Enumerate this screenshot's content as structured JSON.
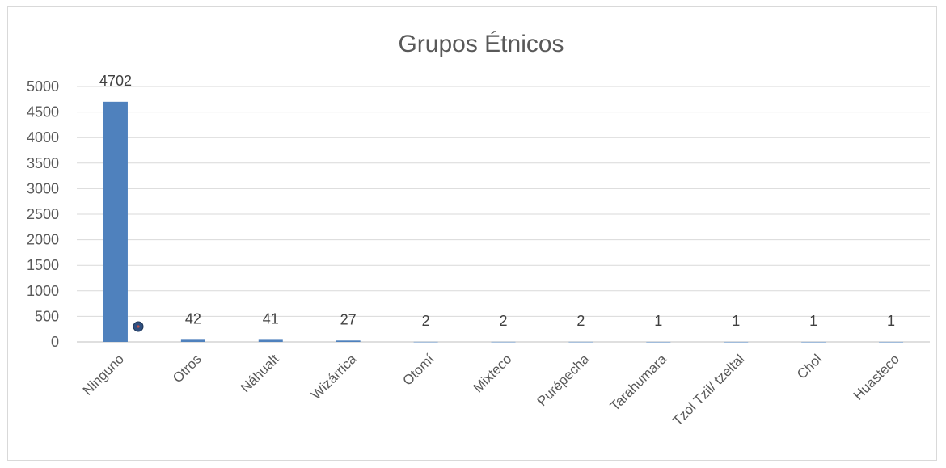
{
  "chart_data": {
    "type": "bar",
    "title": "Grupos Étnicos",
    "xlabel": "",
    "ylabel": "",
    "categories": [
      "Ninguno",
      "Otros",
      "Náhualt",
      "Wizárrica",
      "Otomí",
      "Mixteco",
      "Purépecha",
      "Tarahumara",
      "Tzol Tzil/ tzeltal",
      "Chol",
      "Huasteco"
    ],
    "values": [
      4702,
      42,
      41,
      27,
      2,
      2,
      2,
      1,
      1,
      1,
      1
    ],
    "ylim": [
      0,
      5000
    ],
    "yticks": [
      0,
      500,
      1000,
      1500,
      2000,
      2500,
      3000,
      3500,
      4000,
      4500,
      5000
    ],
    "grid": true,
    "legend": "none",
    "bar_color": "#4f81bd",
    "grid_color": "#d9d9d9"
  }
}
